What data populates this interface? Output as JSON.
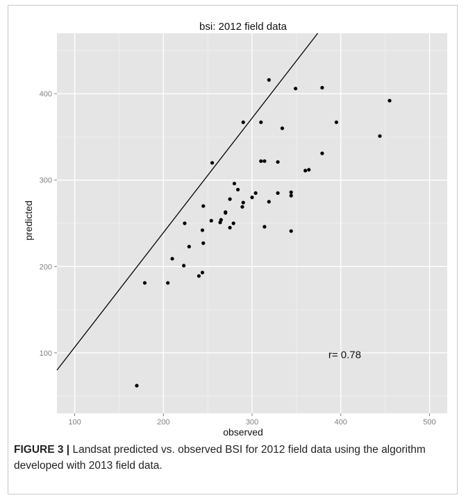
{
  "chart_data": {
    "type": "scatter",
    "title": "bsi: 2012 field data",
    "xlabel": "observed",
    "ylabel": "predicted",
    "xlim": [
      80,
      520
    ],
    "ylim": [
      30,
      470
    ],
    "xticks": [
      100,
      200,
      300,
      400,
      500
    ],
    "yticks": [
      100,
      200,
      300,
      400
    ],
    "grid": true,
    "annotation": "r= 0.78",
    "annotation_pos": [
      386,
      98
    ],
    "fit_line": {
      "x0": 80,
      "y0": 80,
      "x1": 374,
      "y1": 470
    },
    "points": [
      [
        170,
        62
      ],
      [
        179,
        181
      ],
      [
        205,
        181
      ],
      [
        210,
        209
      ],
      [
        223,
        201
      ],
      [
        224,
        250
      ],
      [
        229,
        223
      ],
      [
        240,
        189
      ],
      [
        244,
        193
      ],
      [
        245,
        227
      ],
      [
        244,
        242
      ],
      [
        245,
        270
      ],
      [
        254,
        253
      ],
      [
        255,
        320
      ],
      [
        264,
        251
      ],
      [
        265,
        254
      ],
      [
        270,
        262
      ],
      [
        270,
        263
      ],
      [
        275,
        245
      ],
      [
        275,
        278
      ],
      [
        279,
        250
      ],
      [
        280,
        296
      ],
      [
        284,
        289
      ],
      [
        289,
        269
      ],
      [
        290,
        274
      ],
      [
        290,
        367
      ],
      [
        300,
        280
      ],
      [
        304,
        285
      ],
      [
        310,
        367
      ],
      [
        310,
        322
      ],
      [
        314,
        322
      ],
      [
        314,
        246
      ],
      [
        319,
        275
      ],
      [
        319,
        416
      ],
      [
        329,
        321
      ],
      [
        329,
        285
      ],
      [
        334,
        360
      ],
      [
        344,
        241
      ],
      [
        344,
        286
      ],
      [
        344,
        282
      ],
      [
        349,
        406
      ],
      [
        360,
        311
      ],
      [
        364,
        312
      ],
      [
        379,
        407
      ],
      [
        379,
        331
      ],
      [
        395,
        367
      ],
      [
        444,
        351
      ],
      [
        455,
        392
      ]
    ]
  },
  "caption": {
    "label": "FIGURE 3 |",
    "text": " Landsat predicted vs. observed BSI for 2012 field data using the algorithm developed with 2013 field data."
  }
}
